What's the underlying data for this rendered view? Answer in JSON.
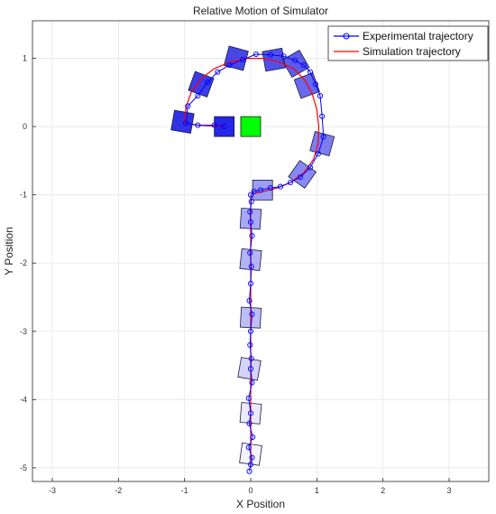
{
  "chart_data": {
    "type": "line",
    "title": "Relative Motion of Simulator",
    "xlabel": "X Position",
    "ylabel": "Y Position",
    "xlim": [
      -3.3,
      3.6
    ],
    "ylim": [
      -5.2,
      1.55
    ],
    "xticks": [
      -3,
      -2,
      -1,
      0,
      1,
      2,
      3
    ],
    "yticks": [
      -5,
      -4,
      -3,
      -2,
      -1,
      0,
      1
    ],
    "grid": true,
    "legend_position": "top-right",
    "colors": {
      "experimental": "#0000ff",
      "simulation": "#ff0000",
      "grid": "#e6e6e6",
      "start_block": "#00ff00",
      "robot_color": "#0000e0"
    },
    "series": [
      {
        "name": "Experimental trajectory",
        "style": "line-with-circle-markers",
        "x": [
          -0.02,
          0.0,
          0.02,
          -0.03,
          0.03,
          -0.02,
          0.0,
          -0.03,
          0.02,
          0.0,
          0.01,
          -0.01,
          0.0,
          0.02,
          -0.02,
          0.0,
          0.01,
          -0.01,
          0.02,
          0.0,
          -0.01,
          0.01,
          0.0,
          0.05,
          0.15,
          0.3,
          0.45,
          0.6,
          0.75,
          0.9,
          1.02,
          1.1,
          1.08,
          1.05,
          0.98,
          0.9,
          0.8,
          0.67,
          0.5,
          0.3,
          0.08,
          -0.12,
          -0.32,
          -0.5,
          -0.65,
          -0.8,
          -0.95,
          -0.98,
          -0.8,
          -0.55,
          -0.4
        ],
        "y": [
          -5.05,
          -4.95,
          -4.85,
          -4.7,
          -4.55,
          -4.35,
          -4.2,
          -3.98,
          -3.75,
          -3.55,
          -3.4,
          -3.2,
          -3.0,
          -2.75,
          -2.55,
          -2.3,
          -2.05,
          -1.85,
          -1.6,
          -1.4,
          -1.25,
          -1.1,
          -1.0,
          -0.95,
          -0.93,
          -0.9,
          -0.88,
          -0.82,
          -0.74,
          -0.6,
          -0.4,
          -0.15,
          0.15,
          0.45,
          0.62,
          0.8,
          0.9,
          0.97,
          1.03,
          1.05,
          1.06,
          0.98,
          0.9,
          0.8,
          0.65,
          0.45,
          0.3,
          0.05,
          0.02,
          0.02,
          0.0
        ]
      },
      {
        "name": "Simulation trajectory",
        "style": "line",
        "x": [
          0.0,
          0.0,
          0.0,
          0.0,
          0.0,
          0.0,
          0.0,
          0.05,
          0.2,
          0.4,
          0.6,
          0.8,
          0.95,
          1.02,
          1.03,
          1.0,
          0.93,
          0.82,
          0.65,
          0.42,
          0.18,
          -0.05,
          -0.3,
          -0.55,
          -0.75,
          -0.9,
          -0.98,
          -0.99,
          -0.8,
          -0.6,
          -0.4
        ],
        "y": [
          -5.0,
          -4.0,
          -3.0,
          -2.0,
          -1.5,
          -1.2,
          -1.05,
          -0.98,
          -0.95,
          -0.9,
          -0.82,
          -0.68,
          -0.48,
          -0.25,
          0.0,
          0.25,
          0.48,
          0.68,
          0.85,
          0.95,
          1.0,
          1.0,
          0.95,
          0.85,
          0.7,
          0.5,
          0.28,
          0.05,
          0.02,
          0.01,
          0.0
        ]
      }
    ],
    "robot_poses": [
      {
        "x": 0.0,
        "y": -4.8,
        "angle": 8,
        "level": 0.05
      },
      {
        "x": 0.0,
        "y": -4.2,
        "angle": 5,
        "level": 0.1
      },
      {
        "x": -0.02,
        "y": -3.55,
        "angle": 10,
        "level": 0.2
      },
      {
        "x": 0.0,
        "y": -2.8,
        "angle": 3,
        "level": 0.3
      },
      {
        "x": 0.0,
        "y": -1.95,
        "angle": 6,
        "level": 0.35
      },
      {
        "x": 0.0,
        "y": -1.35,
        "angle": 4,
        "level": 0.4
      },
      {
        "x": 0.18,
        "y": -0.93,
        "angle": 0,
        "level": 0.45
      },
      {
        "x": 0.78,
        "y": -0.7,
        "angle": 35,
        "level": 0.55
      },
      {
        "x": 1.08,
        "y": -0.25,
        "angle": 15,
        "level": 0.6
      },
      {
        "x": 0.85,
        "y": 0.6,
        "angle": -20,
        "level": 0.7
      },
      {
        "x": 0.68,
        "y": 0.92,
        "angle": -30,
        "level": 0.75
      },
      {
        "x": 0.35,
        "y": 0.98,
        "angle": -10,
        "level": 0.8
      },
      {
        "x": -0.22,
        "y": 1.0,
        "angle": 15,
        "level": 0.85
      },
      {
        "x": -0.75,
        "y": 0.62,
        "angle": 20,
        "level": 0.9
      },
      {
        "x": -1.03,
        "y": 0.07,
        "angle": 10,
        "level": 0.95
      },
      {
        "x": -0.4,
        "y": 0.0,
        "angle": 0,
        "level": 1.0
      }
    ],
    "start_pose": {
      "x": 0.0,
      "y": 0.0
    }
  }
}
